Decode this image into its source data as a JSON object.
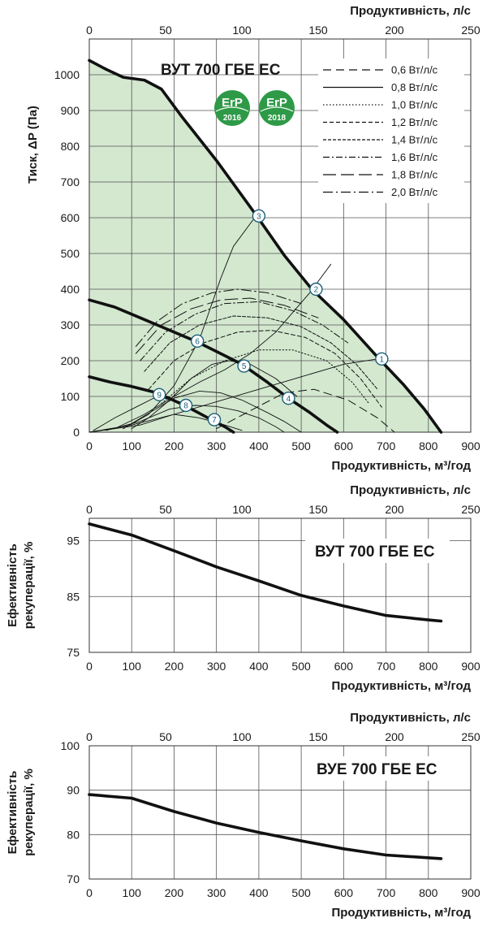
{
  "charts": [
    {
      "id": "fan",
      "type": "line",
      "title": "ВУТ 700 ГБЕ ЕС",
      "xlabel": "Продуктивність, м³/год",
      "x2label": "Продуктивність, л/с",
      "ylabel": "Тиск, ΔP (Па)",
      "xlim": [
        0,
        900
      ],
      "x2lim": [
        0,
        250
      ],
      "ylim": [
        0,
        1100
      ],
      "xticks": [
        0,
        100,
        200,
        300,
        400,
        500,
        600,
        700,
        800,
        900
      ],
      "x2ticks": [
        0,
        50,
        100,
        150,
        200,
        250
      ],
      "yticks": [
        0,
        100,
        200,
        300,
        400,
        500,
        600,
        700,
        800,
        900,
        1000
      ],
      "grid": true,
      "fill_color": "#d3e8cf",
      "line_color": "#111111",
      "badges": [
        "2016",
        "2018"
      ],
      "badge_text": "ErP",
      "badge_color": "#2e9a47",
      "legend": {
        "position": "top-right",
        "items": [
          {
            "label": "0,6 Вт/л/с",
            "dash": "10 6"
          },
          {
            "label": "0,8 Вт/л/с",
            "dash": ""
          },
          {
            "label": "1,0 Вт/л/с",
            "dash": "1.5 2.5"
          },
          {
            "label": "1,2 Вт/л/с",
            "dash": "5 3"
          },
          {
            "label": "1,4 Вт/л/с",
            "dash": "4 2"
          },
          {
            "label": "1,6 Вт/л/с",
            "dash": "8 3 2 3"
          },
          {
            "label": "1,8 Вт/л/с",
            "dash": "16 6"
          },
          {
            "label": "2,0 Вт/л/с",
            "dash": "12 4 2 4"
          }
        ]
      },
      "series": [
        {
          "style": "thick",
          "points": [
            [
              0,
              1040
            ],
            [
              40,
              1015
            ],
            [
              80,
              993
            ],
            [
              130,
              985
            ],
            [
              170,
              960
            ],
            [
              220,
              880
            ],
            [
              300,
              760
            ],
            [
              395,
              605
            ],
            [
              460,
              495
            ],
            [
              525,
              400
            ],
            [
              600,
              315
            ],
            [
              680,
              210
            ],
            [
              740,
              135
            ],
            [
              790,
              65
            ],
            [
              830,
              0
            ]
          ]
        },
        {
          "style": "thick",
          "points": [
            [
              0,
              370
            ],
            [
              60,
              350
            ],
            [
              120,
              320
            ],
            [
              180,
              290
            ],
            [
              250,
              255
            ],
            [
              310,
              220
            ],
            [
              360,
              190
            ],
            [
              420,
              140
            ],
            [
              470,
              95
            ],
            [
              520,
              55
            ],
            [
              560,
              20
            ],
            [
              585,
              0
            ]
          ]
        },
        {
          "style": "thick",
          "points": [
            [
              0,
              155
            ],
            [
              50,
              140
            ],
            [
              100,
              128
            ],
            [
              160,
              110
            ],
            [
              225,
              75
            ],
            [
              280,
              40
            ],
            [
              320,
              15
            ],
            [
              340,
              0
            ]
          ]
        },
        {
          "style": "thin",
          "points": [
            [
              0,
              0
            ],
            [
              60,
              10
            ],
            [
              130,
              50
            ],
            [
              200,
              100
            ],
            [
              260,
              140
            ],
            [
              320,
              175
            ],
            [
              380,
              220
            ],
            [
              440,
              280
            ],
            [
              520,
              390
            ],
            [
              570,
              470
            ]
          ]
        },
        {
          "style": "thin",
          "points": [
            [
              0,
              0
            ],
            [
              100,
              20
            ],
            [
              200,
              50
            ],
            [
              300,
              85
            ],
            [
              400,
              120
            ],
            [
              500,
              155
            ],
            [
              600,
              190
            ],
            [
              680,
              205
            ]
          ]
        },
        {
          "style": "thin",
          "points": [
            [
              80,
              10
            ],
            [
              140,
              50
            ],
            [
              200,
              130
            ],
            [
              260,
              260
            ],
            [
              310,
              430
            ],
            [
              340,
              520
            ],
            [
              390,
              600
            ]
          ]
        },
        {
          "style": "thin",
          "points": [
            [
              10,
              5
            ],
            [
              60,
              40
            ],
            [
              110,
              70
            ],
            [
              160,
              100
            ],
            [
              230,
              80
            ]
          ]
        },
        {
          "style": "thin",
          "points": [
            [
              0,
              0
            ],
            [
              120,
              20
            ],
            [
              200,
              50
            ],
            [
              260,
              40
            ],
            [
              320,
              20
            ],
            [
              360,
              5
            ]
          ]
        },
        {
          "style": "thin",
          "points": [
            [
              100,
              10
            ],
            [
              140,
              40
            ],
            [
              190,
              90
            ],
            [
              240,
              150
            ],
            [
              290,
              190
            ],
            [
              330,
              200
            ],
            [
              380,
              190
            ],
            [
              440,
              150
            ],
            [
              490,
              100
            ]
          ]
        },
        {
          "style": "thin",
          "points": [
            [
              80,
              10
            ],
            [
              150,
              60
            ],
            [
              200,
              95
            ],
            [
              260,
              115
            ],
            [
              310,
              110
            ],
            [
              360,
              90
            ],
            [
              420,
              55
            ],
            [
              460,
              30
            ],
            [
              500,
              0
            ]
          ]
        },
        {
          "style": "thin",
          "points": [
            [
              40,
              5
            ],
            [
              120,
              30
            ],
            [
              190,
              65
            ],
            [
              250,
              75
            ],
            [
              300,
              72
            ],
            [
              350,
              60
            ],
            [
              400,
              40
            ],
            [
              440,
              15
            ],
            [
              460,
              0
            ]
          ]
        },
        {
          "style": "dash",
          "dash": "10 6",
          "points": [
            [
              300,
              10
            ],
            [
              380,
              60
            ],
            [
              460,
              110
            ],
            [
              530,
              120
            ],
            [
              610,
              90
            ],
            [
              680,
              40
            ],
            [
              720,
              0
            ]
          ]
        },
        {
          "style": "dash",
          "dash": "1.5 2.5",
          "points": [
            [
              170,
              80
            ],
            [
              240,
              150
            ],
            [
              320,
              200
            ],
            [
              400,
              230
            ],
            [
              480,
              230
            ],
            [
              560,
              200
            ],
            [
              620,
              140
            ],
            [
              660,
              80
            ]
          ]
        },
        {
          "style": "dash",
          "dash": "5 3",
          "points": [
            [
              140,
              120
            ],
            [
              200,
              200
            ],
            [
              270,
              250
            ],
            [
              350,
              280
            ],
            [
              430,
              285
            ],
            [
              510,
              265
            ],
            [
              580,
              220
            ],
            [
              640,
              150
            ],
            [
              690,
              70
            ]
          ]
        },
        {
          "style": "dash",
          "dash": "4 2",
          "points": [
            [
              130,
              170
            ],
            [
              190,
              250
            ],
            [
              260,
              300
            ],
            [
              340,
              325
            ],
            [
              420,
              320
            ],
            [
              500,
              295
            ],
            [
              570,
              250
            ],
            [
              630,
              190
            ],
            [
              680,
              120
            ]
          ]
        },
        {
          "style": "dash",
          "dash": "8 3 2 3",
          "points": [
            [
              120,
              200
            ],
            [
              180,
              280
            ],
            [
              250,
              330
            ],
            [
              320,
              360
            ],
            [
              400,
              365
            ],
            [
              480,
              340
            ],
            [
              550,
              300
            ],
            [
              610,
              250
            ]
          ]
        },
        {
          "style": "dash",
          "dash": "16 6",
          "points": [
            [
              110,
              220
            ],
            [
              170,
              300
            ],
            [
              240,
              345
            ],
            [
              310,
              370
            ],
            [
              380,
              375
            ],
            [
              460,
              355
            ],
            [
              540,
              320
            ]
          ]
        },
        {
          "style": "dash",
          "dash": "12 4 2 4",
          "points": [
            [
              110,
              240
            ],
            [
              160,
              310
            ],
            [
              220,
              360
            ],
            [
              290,
              390
            ],
            [
              350,
              400
            ],
            [
              420,
              390
            ],
            [
              500,
              360
            ]
          ]
        }
      ],
      "points": [
        {
          "label": "1",
          "x": 690,
          "y": 205
        },
        {
          "label": "2",
          "x": 535,
          "y": 400
        },
        {
          "label": "3",
          "x": 400,
          "y": 605
        },
        {
          "label": "4",
          "x": 470,
          "y": 95
        },
        {
          "label": "5",
          "x": 365,
          "y": 185
        },
        {
          "label": "6",
          "x": 255,
          "y": 255
        },
        {
          "label": "7",
          "x": 295,
          "y": 35
        },
        {
          "label": "8",
          "x": 228,
          "y": 75
        },
        {
          "label": "9",
          "x": 165,
          "y": 105
        }
      ]
    },
    {
      "id": "eff1",
      "type": "line",
      "title": "ВУТ 700 ГБЕ ЕС",
      "xlabel": "Продуктивність, м³/год",
      "x2label": "Продуктивність, л/с",
      "ylabel": "Ефективність рекуперації, %",
      "xlim": [
        0,
        900
      ],
      "x2lim": [
        0,
        250
      ],
      "ylim": [
        75,
        99
      ],
      "xticks": [
        0,
        100,
        200,
        300,
        400,
        500,
        600,
        700,
        800,
        900
      ],
      "x2ticks": [
        0,
        50,
        100,
        150,
        200,
        250
      ],
      "yticks": [
        75,
        85,
        95
      ],
      "grid": true,
      "series": [
        {
          "style": "thick",
          "points": [
            [
              0,
              98
            ],
            [
              100,
              96
            ],
            [
              200,
              93.2
            ],
            [
              300,
              90.3
            ],
            [
              400,
              87.8
            ],
            [
              500,
              85.2
            ],
            [
              600,
              83.3
            ],
            [
              700,
              81.6
            ],
            [
              800,
              80.8
            ],
            [
              830,
              80.6
            ]
          ]
        }
      ]
    },
    {
      "id": "eff2",
      "type": "line",
      "title": "ВУЕ 700 ГБЕ ЕС",
      "xlabel": "Продуктивність, м³/год",
      "x2label": "Продуктивність, л/с",
      "ylabel": "Ефективність рекуперації, %",
      "xlim": [
        0,
        900
      ],
      "x2lim": [
        0,
        250
      ],
      "ylim": [
        70,
        100
      ],
      "xticks": [
        0,
        100,
        200,
        300,
        400,
        500,
        600,
        700,
        800,
        900
      ],
      "x2ticks": [
        0,
        50,
        100,
        150,
        200,
        250
      ],
      "yticks": [
        70,
        80,
        90,
        100
      ],
      "grid": true,
      "series": [
        {
          "style": "thick",
          "points": [
            [
              0,
              89
            ],
            [
              100,
              88.2
            ],
            [
              200,
              85.2
            ],
            [
              300,
              82.6
            ],
            [
              400,
              80.5
            ],
            [
              500,
              78.6
            ],
            [
              600,
              76.8
            ],
            [
              700,
              75.4
            ],
            [
              830,
              74.6
            ]
          ]
        }
      ]
    }
  ]
}
